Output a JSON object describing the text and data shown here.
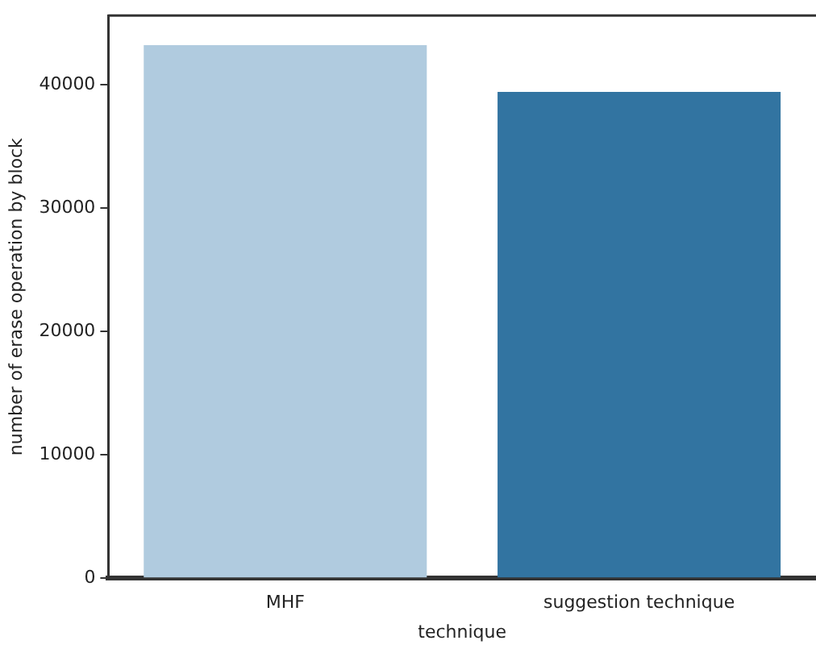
{
  "chart_data": {
    "type": "bar",
    "xlabel": "technique",
    "ylabel": "number of erase operation by block",
    "categories": [
      "MHF",
      "suggestion technique"
    ],
    "values": [
      43200,
      39400
    ],
    "colors": [
      "#b0cbdf",
      "#3274a1"
    ],
    "ylim": [
      0,
      45600
    ],
    "yticks": [
      0,
      10000,
      20000,
      30000,
      40000
    ],
    "grid": false,
    "legend": false
  }
}
